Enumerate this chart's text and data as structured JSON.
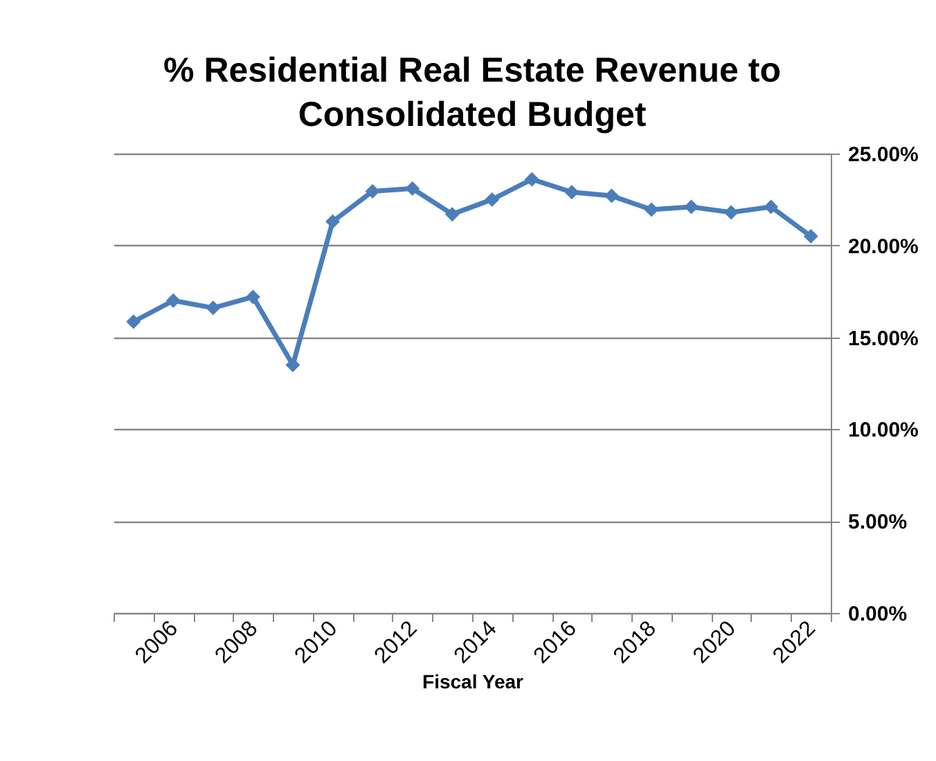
{
  "chart_data": {
    "type": "line",
    "title": "% Residential Real Estate Revenue to Consolidated Budget",
    "xlabel": "Fiscal Year",
    "categories": [
      null,
      "2006",
      null,
      "2008",
      null,
      "2010",
      null,
      "2012",
      null,
      "2014",
      null,
      "2016",
      null,
      "2018",
      null,
      "2020",
      null,
      "2022"
    ],
    "series": [
      {
        "color": "#4a7ebb",
        "values": [
          15.85,
          17.0,
          16.6,
          17.2,
          13.5,
          21.3,
          22.95,
          23.1,
          21.7,
          22.5,
          23.6,
          22.9,
          22.7,
          21.95,
          22.1,
          21.8,
          22.1,
          20.5
        ]
      }
    ],
    "ylim": [
      0,
      25
    ],
    "yticks": [
      {
        "value": 0,
        "label": "0.00%"
      },
      {
        "value": 5,
        "label": "5.00%"
      },
      {
        "value": 10,
        "label": "10.00%"
      },
      {
        "value": 15,
        "label": "15.00%"
      },
      {
        "value": 20,
        "label": "20.00%"
      },
      {
        "value": 25,
        "label": "25.00%"
      }
    ],
    "grid": "y",
    "marker": "diamond",
    "line_style": "solid"
  }
}
